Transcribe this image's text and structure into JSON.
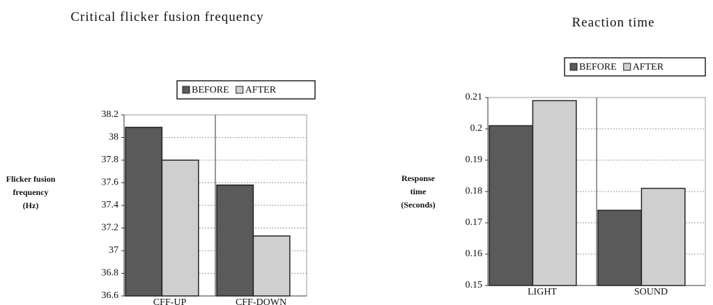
{
  "chart_data": [
    {
      "type": "bar",
      "title": "Critical flicker fusion frequency",
      "y_label": "Flicker fusion frequency (Hz)",
      "categories": [
        "CFF-UP",
        "CFF-DOWN"
      ],
      "series": [
        {
          "name": "BEFORE",
          "color": "#5a5a5a",
          "values": [
            38.09,
            37.58
          ]
        },
        {
          "name": "AFTER",
          "color": "#cfcfcf",
          "values": [
            37.8,
            37.13
          ]
        }
      ],
      "ylim": [
        36.6,
        38.2
      ],
      "yticks": [
        36.6,
        36.8,
        37,
        37.2,
        37.4,
        37.6,
        37.8,
        38,
        38.2
      ],
      "grid": true,
      "legend": "top"
    },
    {
      "type": "bar",
      "title": "Reaction time",
      "y_label": "Response time (Seconds)",
      "categories": [
        "LIGHT",
        "SOUND"
      ],
      "series": [
        {
          "name": "BEFORE",
          "color": "#5a5a5a",
          "values": [
            0.201,
            0.174
          ]
        },
        {
          "name": "AFTER",
          "color": "#cfcfcf",
          "values": [
            0.209,
            0.181
          ]
        }
      ],
      "ylim": [
        0.15,
        0.21
      ],
      "yticks": [
        0.15,
        0.16,
        0.17,
        0.18,
        0.19,
        0.2,
        0.21
      ],
      "grid": true,
      "legend": "top"
    }
  ]
}
